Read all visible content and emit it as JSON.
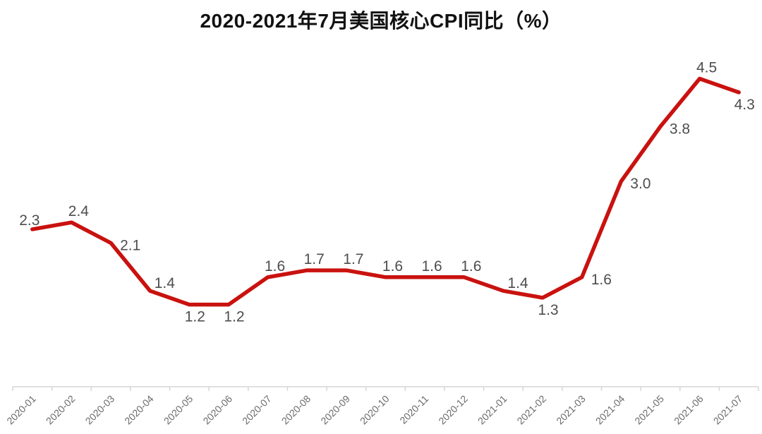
{
  "chart_data": {
    "type": "line",
    "title": "2020-2021年7月美国核心CPI同比（%）",
    "xlabel": "",
    "ylabel": "",
    "categories": [
      "2020-01",
      "2020-02",
      "2020-03",
      "2020-04",
      "2020-05",
      "2020-06",
      "2020-07",
      "2020-08",
      "2020-09",
      "2020-10",
      "2020-11",
      "2020-12",
      "2021-01",
      "2021-02",
      "2021-03",
      "2021-04",
      "2021-05",
      "2021-06",
      "2021-07"
    ],
    "values": [
      2.3,
      2.4,
      2.1,
      1.4,
      1.2,
      1.2,
      1.6,
      1.7,
      1.7,
      1.6,
      1.6,
      1.6,
      1.4,
      1.3,
      1.6,
      3.0,
      3.8,
      4.5,
      4.3
    ],
    "label_positions": [
      "above-left",
      "above",
      "right",
      "above-right",
      "below",
      "below",
      "above",
      "above",
      "above",
      "above",
      "above",
      "above",
      "above-right",
      "below",
      "right",
      "right",
      "right",
      "above",
      "below"
    ],
    "value_decimals": 1,
    "ylim": [
      0,
      4.6
    ],
    "grid": false,
    "legend": "none",
    "y_axis_visible": false,
    "x_tick_rotation": 45,
    "colors": {
      "line": "#C9120F",
      "data_label": "#4D4D4D",
      "axis_label": "#6B6B6B",
      "axis_line": "#D6D6D6",
      "title": "#111111",
      "background": "#FFFFFF"
    }
  }
}
